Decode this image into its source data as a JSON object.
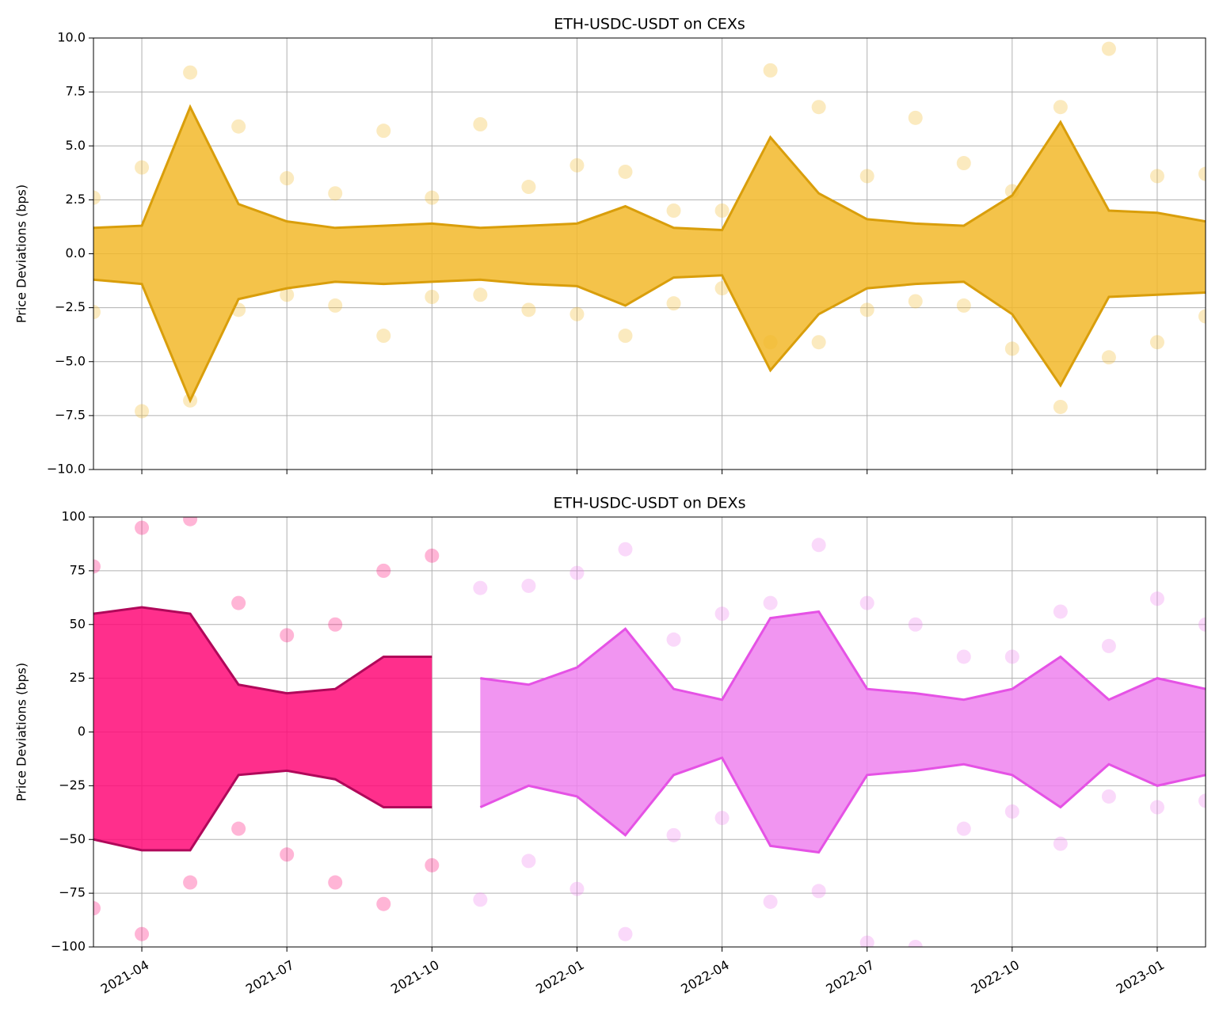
{
  "chart_data": [
    {
      "type": "line",
      "title": "ETH-USDC-USDT on CEXs",
      "y_label": "Price Deviations (bps)",
      "x": [
        "2021-03",
        "2021-04",
        "2021-05",
        "2021-06",
        "2021-07",
        "2021-08",
        "2021-09",
        "2021-10",
        "2021-11",
        "2021-12",
        "2022-01",
        "2022-02",
        "2022-03",
        "2022-04",
        "2022-05",
        "2022-06",
        "2022-07",
        "2022-08",
        "2022-09",
        "2022-10",
        "2022-11",
        "2022-12",
        "2023-01",
        "2023-02"
      ],
      "xlim": [
        "2021-03",
        "2023-02"
      ],
      "ylim": [
        -10,
        10
      ],
      "yticks": [
        {
          "value": -10,
          "label": "−10.0"
        },
        {
          "value": -7.5,
          "label": "−7.5"
        },
        {
          "value": -5,
          "label": "−5.0"
        },
        {
          "value": -2.5,
          "label": "−2.5"
        },
        {
          "value": 0,
          "label": "0.0"
        },
        {
          "value": 2.5,
          "label": "2.5"
        },
        {
          "value": 5,
          "label": "5.0"
        },
        {
          "value": 7.5,
          "label": "7.5"
        },
        {
          "value": 10,
          "label": "10.0"
        }
      ],
      "grid": true,
      "bands": [
        {
          "between": [
            0,
            1
          ],
          "color": "#f2b92a"
        }
      ],
      "series": [
        {
          "style": "line",
          "color": "#d99e0b",
          "values": [
            1.2,
            1.3,
            6.8,
            2.3,
            1.5,
            1.2,
            1.3,
            1.4,
            1.2,
            1.3,
            1.4,
            2.2,
            1.2,
            1.1,
            5.4,
            2.8,
            1.6,
            1.4,
            1.3,
            2.7,
            6.1,
            2.0,
            1.9,
            1.5
          ]
        },
        {
          "style": "line",
          "color": "#d99e0b",
          "values": [
            -1.2,
            -1.4,
            -6.8,
            -2.1,
            -1.6,
            -1.3,
            -1.4,
            -1.3,
            -1.2,
            -1.4,
            -1.5,
            -2.4,
            -1.1,
            -1.0,
            -5.4,
            -2.8,
            -1.6,
            -1.4,
            -1.3,
            -2.8,
            -6.1,
            -2.0,
            -1.9,
            -1.8
          ]
        },
        {
          "style": "markers",
          "color": "#f2b92a",
          "values": [
            2.6,
            4.0,
            8.4,
            5.9,
            3.5,
            2.8,
            5.7,
            2.6,
            6.0,
            3.1,
            4.1,
            3.8,
            2.0,
            2.0,
            8.5,
            6.8,
            3.6,
            6.3,
            4.2,
            2.9,
            6.8,
            9.5,
            3.6,
            3.7
          ]
        },
        {
          "style": "markers",
          "color": "#f2b92a",
          "values": [
            -2.7,
            -7.3,
            -6.8,
            -2.6,
            -1.9,
            -2.4,
            -3.8,
            -2.0,
            -1.9,
            -2.6,
            -2.8,
            -3.8,
            -2.3,
            -1.6,
            -4.1,
            -4.1,
            -2.6,
            -2.2,
            -2.4,
            -4.4,
            -7.1,
            -4.8,
            -4.1,
            -2.9
          ]
        }
      ]
    },
    {
      "type": "line",
      "title": "ETH-USDC-USDT on DEXs",
      "y_label": "Price Deviations (bps)",
      "x": [
        "2021-03",
        "2021-04",
        "2021-05",
        "2021-06",
        "2021-07",
        "2021-08",
        "2021-09",
        "2021-10",
        "2021-11",
        "2021-12",
        "2022-01",
        "2022-02",
        "2022-03",
        "2022-04",
        "2022-05",
        "2022-06",
        "2022-07",
        "2022-08",
        "2022-09",
        "2022-10",
        "2022-11",
        "2022-12",
        "2023-01",
        "2023-02"
      ],
      "xlim": [
        "2021-03",
        "2023-02"
      ],
      "xticks": [
        "2021-04",
        "2021-07",
        "2021-10",
        "2022-01",
        "2022-04",
        "2022-07",
        "2022-10",
        "2023-01"
      ],
      "ylim": [
        -100,
        100
      ],
      "yticks": [
        {
          "value": -100,
          "label": "−100"
        },
        {
          "value": -75,
          "label": "−75"
        },
        {
          "value": -50,
          "label": "−50"
        },
        {
          "value": -25,
          "label": "−25"
        },
        0,
        25,
        50,
        75,
        100
      ],
      "grid": true,
      "bands": [
        {
          "between": [
            0,
            1
          ],
          "color": "#ff0a78"
        },
        {
          "between": [
            2,
            3
          ],
          "color": "#ee82ee"
        }
      ],
      "series": [
        {
          "style": "line",
          "color": "#b0085a",
          "values": [
            55,
            58,
            55,
            22,
            18,
            20,
            35,
            35,
            null,
            null,
            null,
            null,
            null,
            null,
            null,
            null,
            null,
            null,
            null,
            null,
            null,
            null,
            null,
            null
          ]
        },
        {
          "style": "line",
          "color": "#b0085a",
          "values": [
            -50,
            -55,
            -55,
            -20,
            -18,
            -22,
            -35,
            -35,
            null,
            null,
            null,
            null,
            null,
            null,
            null,
            null,
            null,
            null,
            null,
            null,
            null,
            null,
            null,
            null
          ]
        },
        {
          "style": "line",
          "color": "#e552e5",
          "values": [
            null,
            null,
            null,
            null,
            null,
            null,
            null,
            null,
            25,
            22,
            30,
            48,
            20,
            15,
            53,
            56,
            20,
            18,
            15,
            20,
            35,
            15,
            25,
            20
          ]
        },
        {
          "style": "line",
          "color": "#e552e5",
          "values": [
            null,
            null,
            null,
            null,
            null,
            null,
            null,
            null,
            -35,
            -25,
            -30,
            -48,
            -20,
            -12,
            -53,
            -56,
            -20,
            -18,
            -15,
            -20,
            -35,
            -15,
            -25,
            -20
          ]
        },
        {
          "style": "markers",
          "color": "#ff0a78",
          "values": [
            77,
            95,
            99,
            60,
            45,
            50,
            75,
            82,
            null,
            null,
            null,
            null,
            null,
            null,
            null,
            null,
            null,
            null,
            null,
            null,
            null,
            null,
            null,
            null
          ]
        },
        {
          "style": "markers",
          "color": "#ff0a78",
          "values": [
            -82,
            -94,
            -70,
            -45,
            -57,
            -70,
            -80,
            -62,
            null,
            null,
            null,
            null,
            null,
            null,
            null,
            null,
            null,
            null,
            null,
            null,
            null,
            null,
            null,
            null
          ]
        },
        {
          "style": "markers",
          "color": "#ee82ee",
          "values": [
            null,
            null,
            null,
            null,
            null,
            null,
            null,
            null,
            67,
            68,
            74,
            85,
            43,
            55,
            60,
            87,
            60,
            50,
            35,
            35,
            56,
            40,
            62,
            50
          ]
        },
        {
          "style": "markers",
          "color": "#ee82ee",
          "values": [
            null,
            null,
            null,
            null,
            null,
            null,
            null,
            null,
            -78,
            -60,
            -73,
            -94,
            -48,
            -40,
            -79,
            -74,
            -98,
            -100,
            -45,
            -37,
            -52,
            -30,
            -35,
            -32
          ]
        }
      ]
    }
  ]
}
